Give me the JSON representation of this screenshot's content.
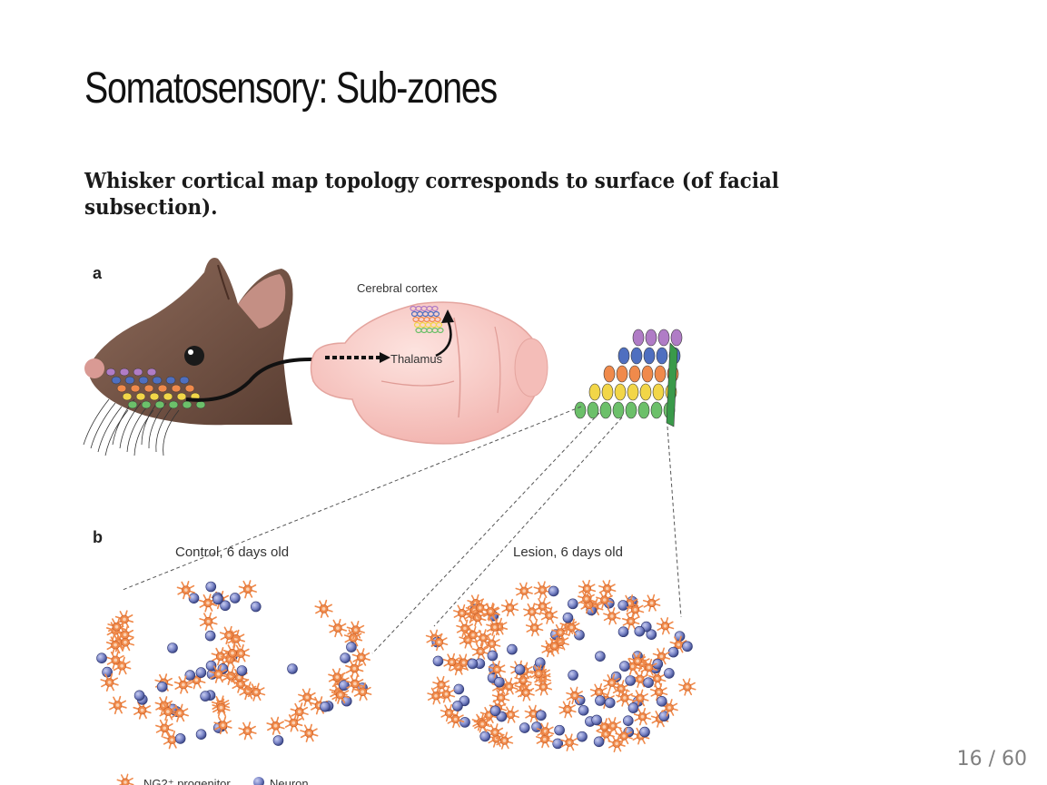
{
  "slide": {
    "title": "Somatosensory: Sub-zones",
    "subtitle": "Whisker cortical map topology corresponds to surface (of facial subsection).",
    "page_number": "16 / 60"
  },
  "figure": {
    "panel_a_label": "a",
    "panel_b_label": "b",
    "cortex_label": "Cerebral cortex",
    "thalamus_label": "Thalamus",
    "control_label": "Control, 6 days old",
    "lesion_label": "Lesion, 6 days old",
    "legend_ng2": "NG2⁺ progenitor",
    "legend_neuron": "Neuron",
    "colors": {
      "purple": "#b07cc6",
      "blue": "#4f6fc0",
      "orange": "#f08a4b",
      "yellow": "#f2d648",
      "green": "#6cc06a",
      "dark_green": "#3a9a4a",
      "brain": "#f6c4c0",
      "mouse": "#7a5848",
      "cell": "#f08a4b",
      "neuron": "#7b86c8"
    }
  }
}
